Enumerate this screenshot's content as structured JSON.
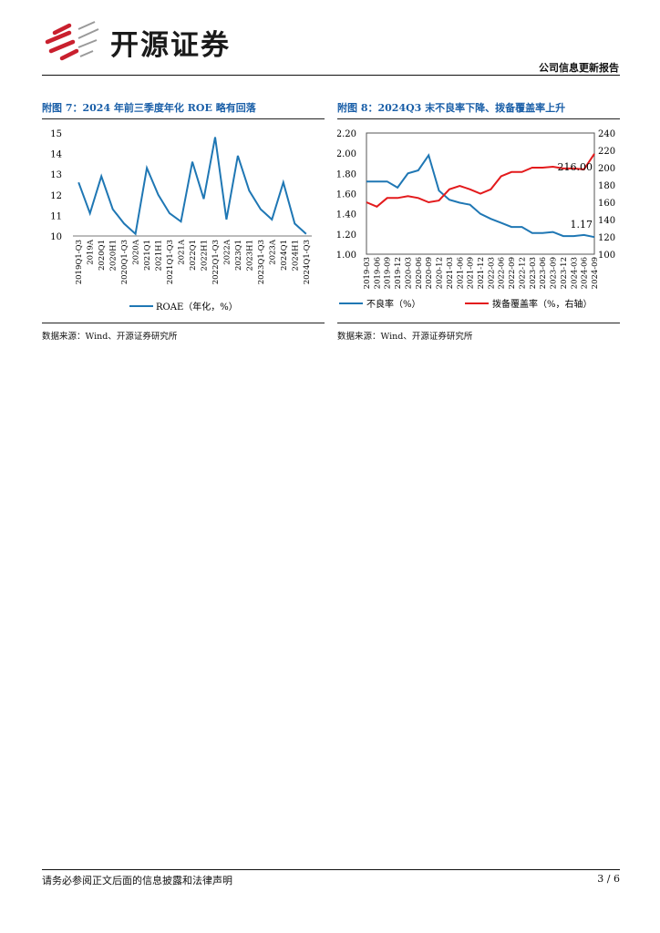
{
  "header": {
    "company_name": "开源证券",
    "report_type": "公司信息更新报告"
  },
  "figures": [
    {
      "title": "附图 7：2024 年前三季度年化 ROE 略有回落",
      "source": "数据来源：Wind、开源证券研究所",
      "chart_data": {
        "type": "line",
        "title": "附图 7：2024 年前三季度年化 ROE 略有回落",
        "categories": [
          "2019Q1-Q3",
          "2019A",
          "2020Q1",
          "2020H1",
          "2020Q1-Q3",
          "2020A",
          "2021Q1",
          "2021H1",
          "2021Q1-Q3",
          "2021A",
          "2022Q1",
          "2022H1",
          "2022Q1-Q3",
          "2022A",
          "2023Q1",
          "2023H1",
          "2023Q1-Q3",
          "2023A",
          "2024Q1",
          "2024H1",
          "2024Q1-Q3"
        ],
        "tick_labels": [
          "2019Q1-Q3",
          "2019A",
          "2020Q1",
          "2020H1",
          "2020Q1-Q3",
          "2020A",
          "2021Q1",
          "2021H1",
          "2021Q1-Q3",
          "2021A",
          "2022Q1",
          "2022H1",
          "2022Q1-Q3",
          "2022A",
          "2023Q1",
          "2023H1",
          "2023Q1-Q3",
          "2023A",
          "2024Q1",
          "2024H1",
          "2024Q1-Q3"
        ],
        "series": [
          {
            "name": "ROAE（年化，%）",
            "color": "#1f77b4",
            "values": [
              12.6,
              11.1,
              12.9,
              11.3,
              10.6,
              10.1,
              13.3,
              12.0,
              11.1,
              10.7,
              13.6,
              11.8,
              14.8,
              10.8,
              13.9,
              12.2,
              11.3,
              10.8,
              12.6,
              10.6,
              10.1
            ]
          }
        ],
        "ylim": [
          10,
          15
        ],
        "yticks": [
          10,
          11,
          12,
          13,
          14,
          15
        ],
        "legend": "bottom"
      }
    },
    {
      "title": "附图 8：2024Q3 末不良率下降、拨备覆盖率上升",
      "source": "数据来源：Wind、开源证券研究所",
      "chart_data": {
        "type": "line",
        "title": "附图 8：2024Q3 末不良率下降、拨备覆盖率上升",
        "categories": [
          "2019-03",
          "2019-06",
          "2019-09",
          "2019-12",
          "2020-03",
          "2020-06",
          "2020-09",
          "2020-12",
          "2021-03",
          "2021-06",
          "2021-09",
          "2021-12",
          "2022-03",
          "2022-06",
          "2022-09",
          "2022-12",
          "2023-03",
          "2023-06",
          "2023-09",
          "2023-12",
          "2024-03",
          "2024-06",
          "2024-09"
        ],
        "tick_labels": [
          "2019-03",
          "2019-06",
          "2019-09",
          "2019-12",
          "2020-03",
          "2020-06",
          "2020-09",
          "2020-12",
          "2021-03",
          "2021-06",
          "2021-09",
          "2021-12",
          "2022-03",
          "2022-06",
          "2022-09",
          "2022-12",
          "2023-03",
          "2023-06",
          "2023-09",
          "2023-12",
          "2024-03",
          "2024-06",
          "2024-09"
        ],
        "series": [
          {
            "name": "不良率（%）",
            "axis": "left",
            "color": "#1f77b4",
            "values": [
              1.72,
              1.72,
              1.72,
              1.66,
              1.8,
              1.83,
              1.98,
              1.63,
              1.54,
              1.51,
              1.49,
              1.4,
              1.35,
              1.31,
              1.27,
              1.27,
              1.21,
              1.21,
              1.22,
              1.18,
              1.18,
              1.19,
              1.17
            ]
          },
          {
            "name": "拨备覆盖率（%，右轴）",
            "axis": "right",
            "color": "#e31a1c",
            "values": [
              160,
              155,
              165,
              165,
              167,
              165,
              160,
              162,
              175,
              179,
              175,
              170,
              175,
              190,
              195,
              195,
              200,
              200,
              201,
              199,
              199,
              198,
              216
            ]
          }
        ],
        "y_left": {
          "ylim": [
            1.0,
            2.2
          ],
          "ticks": [
            "1.00",
            "1.20",
            "1.40",
            "1.60",
            "1.80",
            "2.00",
            "2.20"
          ]
        },
        "y_right": {
          "ylim": [
            100,
            240
          ],
          "ticks": [
            "100",
            "120",
            "140",
            "160",
            "180",
            "200",
            "220",
            "240"
          ]
        },
        "annotations": [
          "216.00",
          "1.17"
        ],
        "legend": "bottom"
      }
    }
  ],
  "footer": {
    "disclaimer": "请务必参阅正文后面的信息披露和法律声明",
    "page": "3 / 6"
  }
}
